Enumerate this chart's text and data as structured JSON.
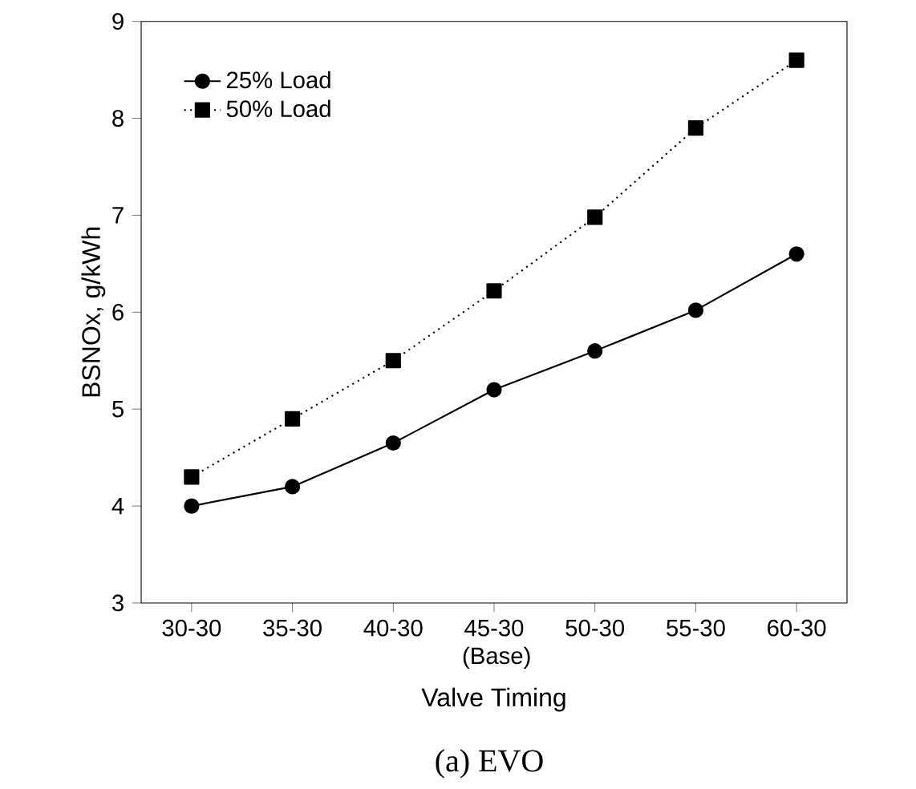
{
  "chart_data": {
    "type": "line",
    "xlabel": "Valve Timing",
    "ylabel": "BSNOx, g/kWh",
    "categories": [
      "30-30",
      "35-30",
      "40-30",
      "45-30 (Base)",
      "50-30",
      "55-30",
      "60-30"
    ],
    "series": [
      {
        "name": "25% Load",
        "color": "#000000",
        "marker": "circle",
        "line_style": "solid",
        "values": [
          4.0,
          4.2,
          4.65,
          5.2,
          5.6,
          6.02,
          6.6
        ]
      },
      {
        "name": "50% Load",
        "color": "#000000",
        "marker": "square",
        "line_style": "dotted",
        "values": [
          4.3,
          4.9,
          5.5,
          6.22,
          6.98,
          7.9,
          8.6
        ]
      }
    ],
    "ylim": [
      3,
      9
    ],
    "yticks": [
      3,
      4,
      5,
      6,
      7,
      8,
      9
    ],
    "grid": false,
    "legend": "top left",
    "annotations": [
      "(a)  EVO"
    ]
  }
}
